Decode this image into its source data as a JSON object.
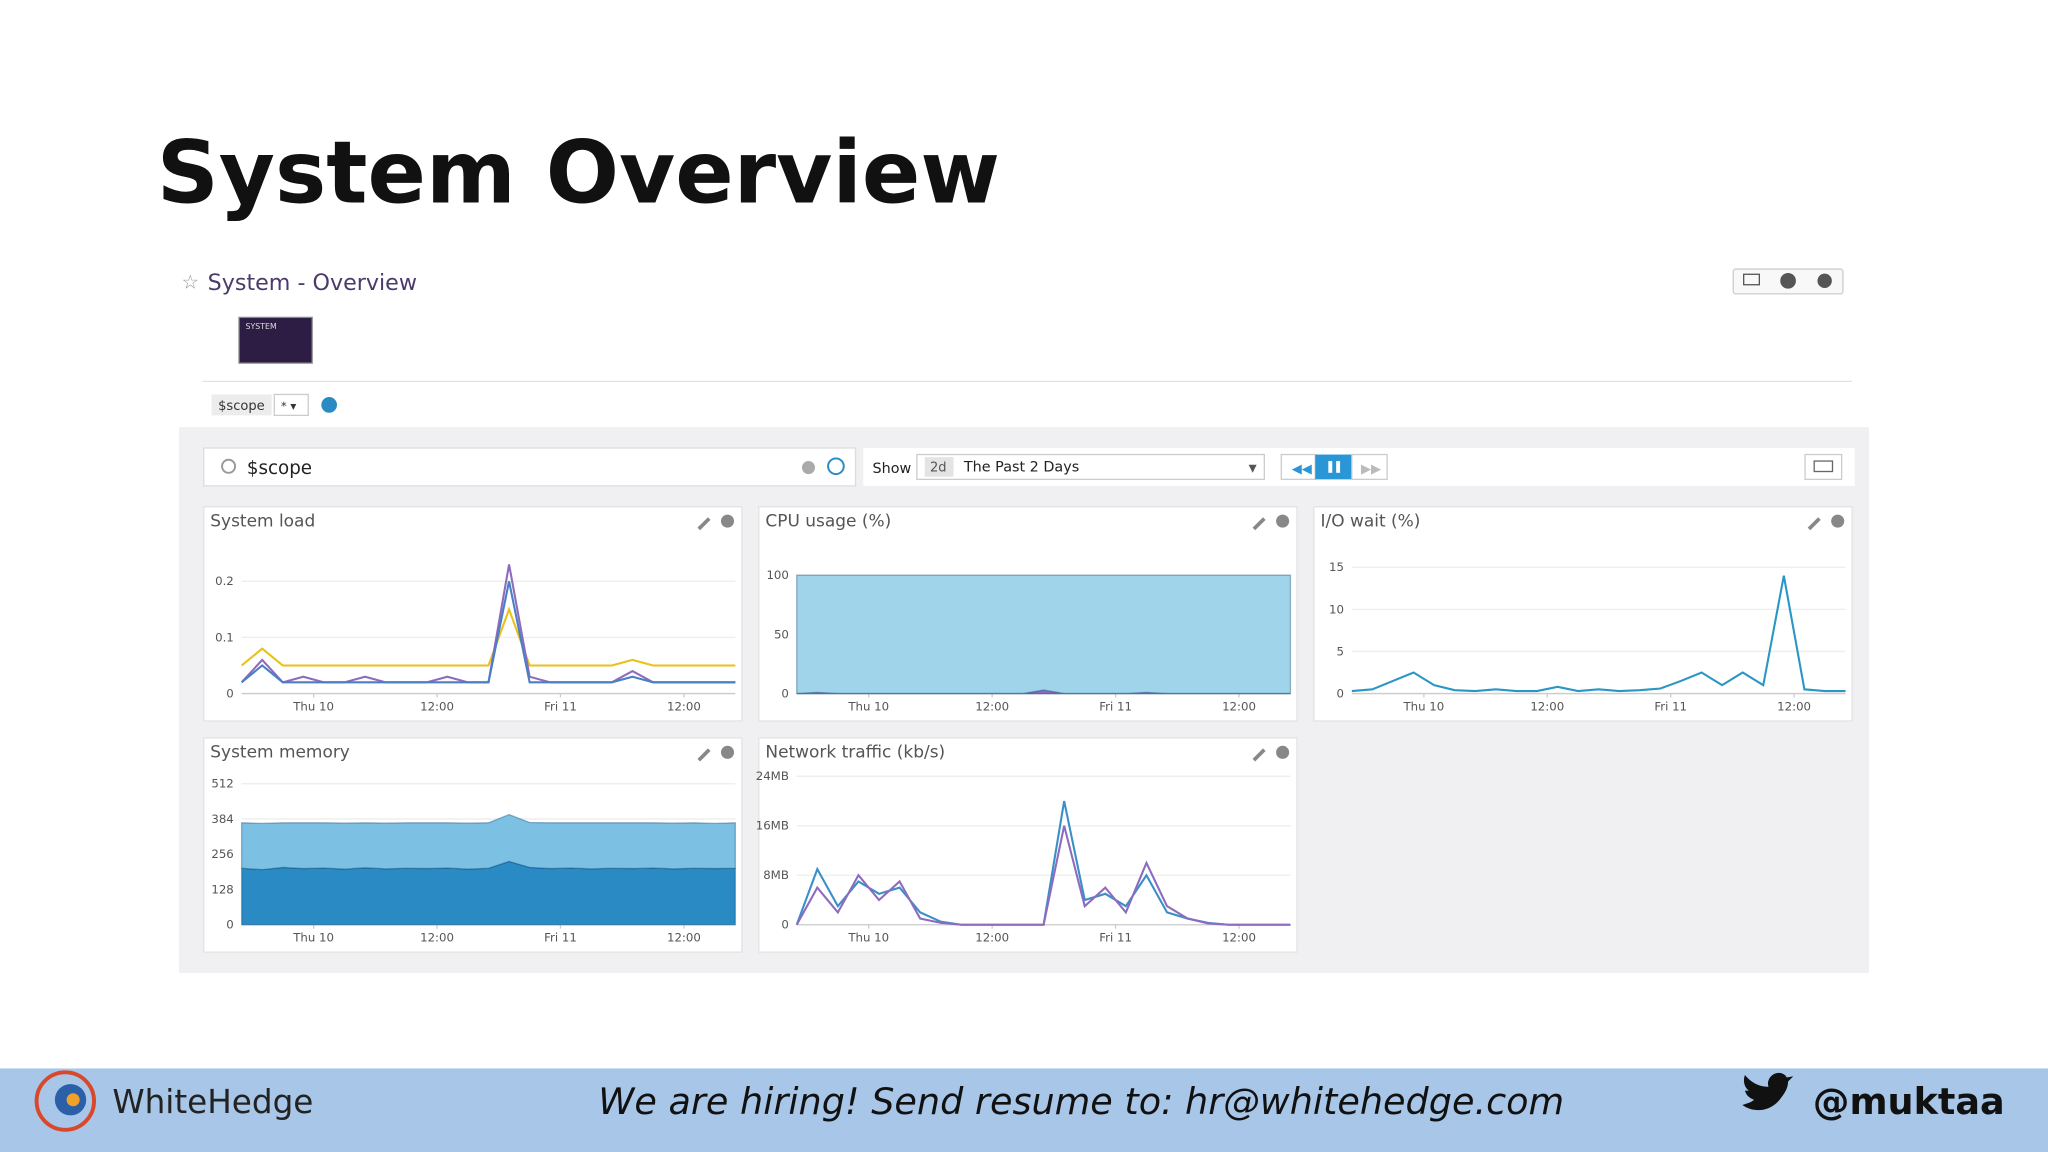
{
  "slide": {
    "title": "System Overview"
  },
  "dashboard": {
    "title": "System - Overview",
    "thumbnail": "SYSTEM",
    "variable": "$scope",
    "variable_value": "* ▾",
    "search": "$scope",
    "show_label": "Show",
    "range_short": "2d",
    "range": "The Past 2 Days"
  },
  "footer": {
    "brand": "WhiteHedge",
    "hiring": "We are hiring! Send resume to: hr@whitehedge.com",
    "handle": "@muktaa"
  },
  "chart_data": [
    {
      "type": "line",
      "title": "System load",
      "x": [
        -7,
        -5,
        -3,
        -1,
        1,
        3,
        5,
        7,
        9,
        11,
        13,
        15,
        17,
        19,
        21,
        23,
        25,
        27,
        29,
        31,
        33,
        35,
        37,
        39,
        41
      ],
      "xlim": [
        -7,
        41
      ],
      "xticks": [
        {
          "value": 0,
          "label": "Thu 10"
        },
        {
          "value": 12,
          "label": "12:00"
        },
        {
          "value": 24,
          "label": "Fri 11"
        },
        {
          "value": 36,
          "label": "12:00"
        }
      ],
      "ylim": [
        0,
        0.27
      ],
      "yticks": [
        0,
        0.1,
        0.2
      ],
      "grid": true,
      "series": [
        {
          "color": "#e8c21a",
          "values": [
            0.05,
            0.08,
            0.05,
            0.05,
            0.05,
            0.05,
            0.05,
            0.05,
            0.05,
            0.05,
            0.05,
            0.05,
            0.05,
            0.15,
            0.05,
            0.05,
            0.05,
            0.05,
            0.05,
            0.06,
            0.05,
            0.05,
            0.05,
            0.05,
            0.05
          ]
        },
        {
          "color": "#8e6bbf",
          "values": [
            0.02,
            0.06,
            0.02,
            0.03,
            0.02,
            0.02,
            0.03,
            0.02,
            0.02,
            0.02,
            0.03,
            0.02,
            0.02,
            0.23,
            0.03,
            0.02,
            0.02,
            0.02,
            0.02,
            0.04,
            0.02,
            0.02,
            0.02,
            0.02,
            0.02
          ]
        },
        {
          "color": "#4a7fc4",
          "values": [
            0.02,
            0.05,
            0.02,
            0.02,
            0.02,
            0.02,
            0.02,
            0.02,
            0.02,
            0.02,
            0.02,
            0.02,
            0.02,
            0.2,
            0.02,
            0.02,
            0.02,
            0.02,
            0.02,
            0.03,
            0.02,
            0.02,
            0.02,
            0.02,
            0.02
          ]
        }
      ]
    },
    {
      "type": "area",
      "title": "CPU usage (%)",
      "x": [
        -7,
        -5,
        -3,
        -1,
        1,
        3,
        5,
        7,
        9,
        11,
        13,
        15,
        17,
        19,
        21,
        23,
        25,
        27,
        29,
        31,
        33,
        35,
        37,
        39,
        41
      ],
      "xlim": [
        -7,
        41
      ],
      "xticks": [
        {
          "value": 0,
          "label": "Thu 10"
        },
        {
          "value": 12,
          "label": "12:00"
        },
        {
          "value": 24,
          "label": "Fri 11"
        },
        {
          "value": 36,
          "label": "12:00"
        }
      ],
      "ylim": [
        0,
        128
      ],
      "yticks": [
        0,
        50,
        100
      ],
      "grid": true,
      "stacked": false,
      "series": [
        {
          "color": "#9fd4ea",
          "values": [
            100,
            100,
            100,
            100,
            100,
            100,
            100,
            100,
            100,
            100,
            100,
            100,
            100,
            100,
            100,
            100,
            100,
            100,
            100,
            100,
            100,
            100,
            100,
            100,
            100
          ]
        },
        {
          "color": "#8e6bbf",
          "values": [
            0,
            1,
            0,
            0,
            0,
            0,
            0,
            0,
            0,
            0,
            0,
            0,
            3,
            0,
            0,
            0,
            0,
            1,
            0,
            0,
            0,
            0,
            0,
            0,
            0
          ]
        }
      ]
    },
    {
      "type": "line",
      "title": "I/O wait (%)",
      "x": [
        -7,
        -5,
        -3,
        -1,
        1,
        3,
        5,
        7,
        9,
        11,
        13,
        15,
        17,
        19,
        21,
        23,
        25,
        27,
        29,
        31,
        33,
        35,
        37,
        39,
        41
      ],
      "xlim": [
        -7,
        41
      ],
      "xticks": [
        {
          "value": 0,
          "label": "Thu 10"
        },
        {
          "value": 12,
          "label": "12:00"
        },
        {
          "value": 24,
          "label": "Fri 11"
        },
        {
          "value": 36,
          "label": "12:00"
        }
      ],
      "ylim": [
        0,
        18
      ],
      "yticks": [
        0,
        5,
        10,
        15
      ],
      "grid": true,
      "series": [
        {
          "color": "#2a96c6",
          "values": [
            0.3,
            0.5,
            1.5,
            2.5,
            1,
            0.4,
            0.3,
            0.5,
            0.3,
            0.3,
            0.8,
            0.3,
            0.5,
            0.3,
            0.4,
            0.6,
            1.5,
            2.5,
            1,
            2.5,
            1,
            14,
            0.5,
            0.3,
            0.3
          ]
        }
      ]
    },
    {
      "type": "area",
      "title": "System memory",
      "x": [
        -7,
        -5,
        -3,
        -1,
        1,
        3,
        5,
        7,
        9,
        11,
        13,
        15,
        17,
        19,
        21,
        23,
        25,
        27,
        29,
        31,
        33,
        35,
        37,
        39,
        41
      ],
      "xlim": [
        -7,
        41
      ],
      "xticks": [
        {
          "value": 0,
          "label": "Thu 10"
        },
        {
          "value": 12,
          "label": "12:00"
        },
        {
          "value": 24,
          "label": "Fri 11"
        },
        {
          "value": 36,
          "label": "12:00"
        }
      ],
      "ylim": [
        0,
        550
      ],
      "yticks": [
        0,
        128,
        256,
        384,
        512
      ],
      "grid": true,
      "stacked": true,
      "series": [
        {
          "color": "#2a8ac4",
          "values": [
            205,
            200,
            208,
            204,
            206,
            202,
            207,
            203,
            205,
            204,
            206,
            202,
            205,
            230,
            208,
            204,
            206,
            203,
            205,
            204,
            206,
            203,
            205,
            204,
            205
          ]
        },
        {
          "color": "#7cc0e4",
          "values": [
            165,
            168,
            162,
            166,
            164,
            167,
            163,
            166,
            165,
            166,
            164,
            167,
            165,
            170,
            163,
            166,
            164,
            167,
            165,
            166,
            164,
            166,
            165,
            164,
            165
          ]
        }
      ]
    },
    {
      "type": "line",
      "title": "Network traffic (kb/s)",
      "x": [
        -7,
        -5,
        -3,
        -1,
        1,
        3,
        5,
        7,
        9,
        11,
        13,
        15,
        17,
        19,
        21,
        23,
        25,
        27,
        29,
        31,
        33,
        35,
        37,
        39,
        41
      ],
      "xlim": [
        -7,
        41
      ],
      "xticks": [
        {
          "value": 0,
          "label": "Thu 10"
        },
        {
          "value": 12,
          "label": "12:00"
        },
        {
          "value": 24,
          "label": "Fri 11"
        },
        {
          "value": 36,
          "label": "12:00"
        }
      ],
      "ylim": [
        0,
        24.5
      ],
      "yticks": [
        0,
        {
          "value": 8,
          "label": "8MB"
        },
        {
          "value": 16,
          "label": "16MB"
        },
        {
          "value": 24,
          "label": "24MB"
        }
      ],
      "grid": true,
      "series": [
        {
          "color": "#3a8fc8",
          "values": [
            0,
            9,
            3,
            7,
            5,
            6,
            2,
            0.5,
            0,
            0,
            0,
            0,
            0,
            20,
            4,
            5,
            3,
            8,
            2,
            1,
            0.3,
            0,
            0,
            0,
            0
          ]
        },
        {
          "color": "#8e6bbf",
          "values": [
            0,
            6,
            2,
            8,
            4,
            7,
            1,
            0.3,
            0,
            0,
            0,
            0,
            0,
            16,
            3,
            6,
            2,
            10,
            3,
            1,
            0.2,
            0,
            0,
            0,
            0
          ]
        }
      ]
    }
  ]
}
